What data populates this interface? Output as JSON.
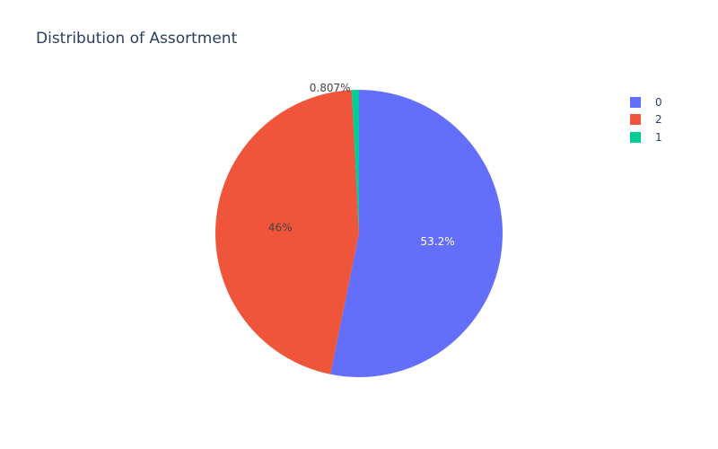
{
  "chart_data": {
    "type": "pie",
    "title": "Distribution of Assortment",
    "slices": [
      {
        "label": "0",
        "value": 53.2,
        "text": "53.2%",
        "color": "#636efa"
      },
      {
        "label": "2",
        "value": 46.0,
        "text": "46%",
        "color": "#ef553b"
      },
      {
        "label": "1",
        "value": 0.807,
        "text": "0.807%",
        "color": "#00cc96"
      }
    ],
    "direction": "clockwise",
    "start": "top",
    "legend": {
      "position": "top-right",
      "items": [
        "0",
        "2",
        "1"
      ]
    }
  }
}
